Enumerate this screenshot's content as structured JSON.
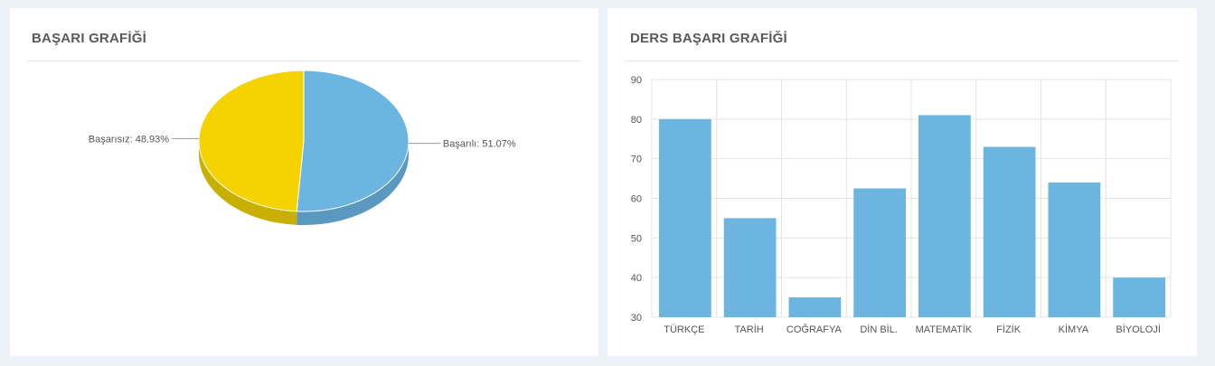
{
  "panels": {
    "left": {
      "title": "BAŞARI GRAFİĞİ"
    },
    "right": {
      "title": "DERS BAŞARI GRAFİĞİ"
    }
  },
  "chart_data": [
    {
      "type": "pie",
      "title": "BAŞARI GRAFİĞİ",
      "three_d": true,
      "slices": [
        {
          "label": "Başarılı: 51.07%",
          "value": 51.07,
          "color": "#6cb5e0",
          "side_color": "#5a98bf"
        },
        {
          "label": "Başarısız: 48.93%",
          "value": 48.93,
          "color": "#f5d300",
          "side_color": "#c9b000"
        }
      ]
    },
    {
      "type": "bar",
      "title": "DERS BAŞARI GRAFİĞİ",
      "categories": [
        "TÜRKÇE",
        "TARİH",
        "COĞRAFYA",
        "DİN BİL.",
        "MATEMATİK",
        "FİZİK",
        "KİMYA",
        "BİYOLOJİ"
      ],
      "values": [
        80,
        55,
        35,
        62.5,
        81,
        73,
        64,
        40
      ],
      "ylim": [
        30,
        90
      ],
      "yticks": [
        30,
        40,
        50,
        60,
        70,
        80,
        90
      ],
      "grid": true,
      "color": "#6cb5e0"
    }
  ]
}
